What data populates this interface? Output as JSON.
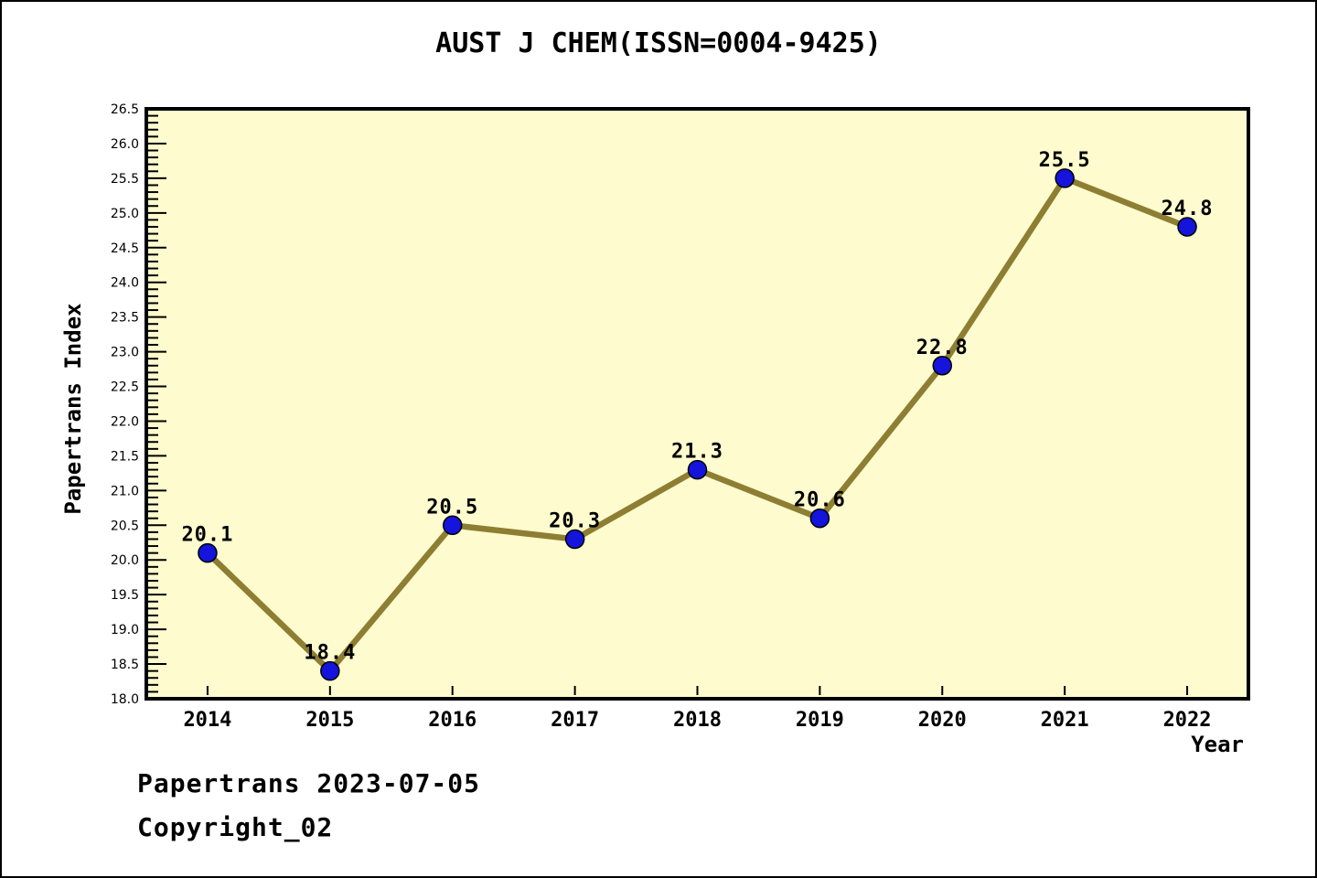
{
  "chart_data": {
    "type": "line",
    "title": "AUST J CHEM(ISSN=0004-9425)",
    "xlabel": "Year",
    "ylabel": "Papertrans Index",
    "x": [
      2014,
      2015,
      2016,
      2017,
      2018,
      2019,
      2020,
      2021,
      2022
    ],
    "values": [
      20.1,
      18.4,
      20.5,
      20.3,
      21.3,
      20.6,
      22.8,
      25.5,
      24.8
    ],
    "ylim": [
      18.0,
      26.5
    ],
    "ytick_step": 0.5,
    "yminor_step": 0.1,
    "grid": false,
    "legend": null,
    "point_labels_shown": true,
    "colors": {
      "line": "#8E7E33",
      "marker": "#1414DD",
      "marker_edge": "#000000",
      "plot_background": "#FEFCCE",
      "axis": "#000000",
      "text": "#000000",
      "page_background": "#FFFFFF"
    }
  },
  "footer": {
    "line1": "Papertrans 2023-07-05",
    "line2": "Copyright_02"
  }
}
